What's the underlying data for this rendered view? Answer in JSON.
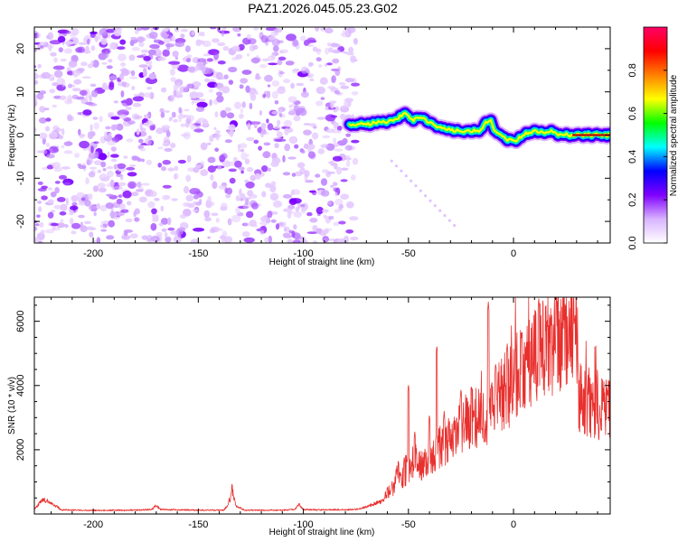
{
  "title": "PAZ1.2026.045.05.23.G02",
  "chart_data": [
    {
      "type": "heatmap",
      "name": "spectrogram",
      "xlabel": "Height of straight line (km)",
      "ylabel": "Frequency (Hz)",
      "xlim": [
        -228,
        46
      ],
      "ylim": [
        -25,
        25
      ],
      "x_ticks": [
        -200,
        -150,
        -100,
        -50,
        0
      ],
      "x_tick_labels": [
        "-200",
        "-150",
        "-100",
        "-50",
        "0"
      ],
      "y_ticks": [
        -20,
        -10,
        0,
        10,
        20
      ],
      "y_tick_labels": [
        "-20",
        "-10",
        "0",
        "10",
        "20"
      ],
      "noise_region_x": [
        -228,
        -78
      ],
      "ridge": {
        "x": [
          -78,
          -70,
          -62,
          -56,
          -52,
          -48,
          -44,
          -40,
          -36,
          -32,
          -28,
          -24,
          -20,
          -16,
          -13,
          -11,
          -9,
          -6,
          -3,
          0,
          3,
          6,
          10,
          14,
          18,
          22,
          26,
          30,
          34,
          38,
          46
        ],
        "y": [
          2.5,
          2.5,
          3,
          3.5,
          5,
          3.5,
          4,
          3,
          2,
          1.5,
          1,
          0.8,
          1,
          1,
          3,
          3.5,
          1,
          0,
          -1,
          -1.5,
          -0.5,
          0.5,
          1,
          0.5,
          1,
          0,
          0,
          0,
          0,
          0,
          0
        ]
      },
      "colorbar": {
        "label": "Normalized spectral amplitude",
        "range": [
          0,
          1
        ],
        "ticks": [
          0.0,
          0.2,
          0.4,
          0.6,
          0.8
        ],
        "tick_labels": [
          "0.0",
          "0.2",
          "0.4",
          "0.6",
          "0.8"
        ],
        "colors": [
          "#ffffff",
          "#d9b3ff",
          "#8000ff",
          "#0000ff",
          "#00ffff",
          "#00ff00",
          "#ffff00",
          "#ff8000",
          "#ff0000",
          "#ff0066"
        ]
      }
    },
    {
      "type": "line",
      "name": "snr",
      "xlabel": "Height of straight line (km)",
      "ylabel": "SNR (10 * v/v)",
      "xlim": [
        -228,
        46
      ],
      "ylim": [
        0,
        6750
      ],
      "x_ticks": [
        -200,
        -150,
        -100,
        -50,
        0
      ],
      "x_tick_labels": [
        "-200",
        "-150",
        "-100",
        "-50",
        "0"
      ],
      "y_ticks": [
        2000,
        4000,
        6000
      ],
      "y_tick_labels": [
        "2000",
        "4000",
        "6000"
      ],
      "series_color": "#e8302e",
      "envelope": {
        "x": [
          -228,
          -226,
          -224,
          -220,
          -215,
          -200,
          -180,
          -172,
          -170,
          -168,
          -150,
          -138,
          -136,
          -134,
          -132,
          -128,
          -110,
          -104,
          -102,
          -100,
          -90,
          -75,
          -70,
          -65,
          -62,
          -60,
          -57,
          -55,
          -53,
          -50,
          -47,
          -44,
          -42,
          -38,
          -35,
          -30,
          -25,
          -20,
          -15,
          -12,
          -10,
          -8,
          -5,
          -2,
          0,
          3,
          6,
          9,
          12,
          15,
          18,
          21,
          24,
          27,
          29,
          30,
          31,
          32,
          35,
          40,
          46
        ],
        "y": [
          150,
          300,
          450,
          350,
          130,
          110,
          120,
          140,
          280,
          140,
          120,
          120,
          250,
          750,
          250,
          120,
          120,
          140,
          300,
          140,
          130,
          140,
          220,
          350,
          400,
          700,
          800,
          1300,
          1100,
          1400,
          1700,
          1500,
          1600,
          1800,
          2100,
          2300,
          2700,
          3000,
          3000,
          3200,
          3400,
          3500,
          3800,
          3900,
          4200,
          4500,
          4600,
          4800,
          5000,
          5200,
          5400,
          5500,
          5600,
          5700,
          5800,
          5600,
          3900,
          3600,
          3500,
          3400,
          3200
        ]
      },
      "spikes": [
        {
          "x": -55.5,
          "y": 1500
        },
        {
          "x": -52,
          "y": 1800
        },
        {
          "x": -50,
          "y": 4050
        },
        {
          "x": -47,
          "y": 2600
        },
        {
          "x": -40,
          "y": 3100
        },
        {
          "x": -36.5,
          "y": 5250
        },
        {
          "x": -33,
          "y": 3200
        },
        {
          "x": -25,
          "y": 3900
        },
        {
          "x": -20,
          "y": 4000
        },
        {
          "x": -12,
          "y": 6600
        },
        {
          "x": -8.5,
          "y": 4700
        },
        {
          "x": -3,
          "y": 5300
        },
        {
          "x": 4,
          "y": 5700
        },
        {
          "x": 12,
          "y": 6700
        },
        {
          "x": 18,
          "y": 6000
        },
        {
          "x": 24,
          "y": 6050
        },
        {
          "x": 29,
          "y": 6100
        }
      ]
    }
  ]
}
